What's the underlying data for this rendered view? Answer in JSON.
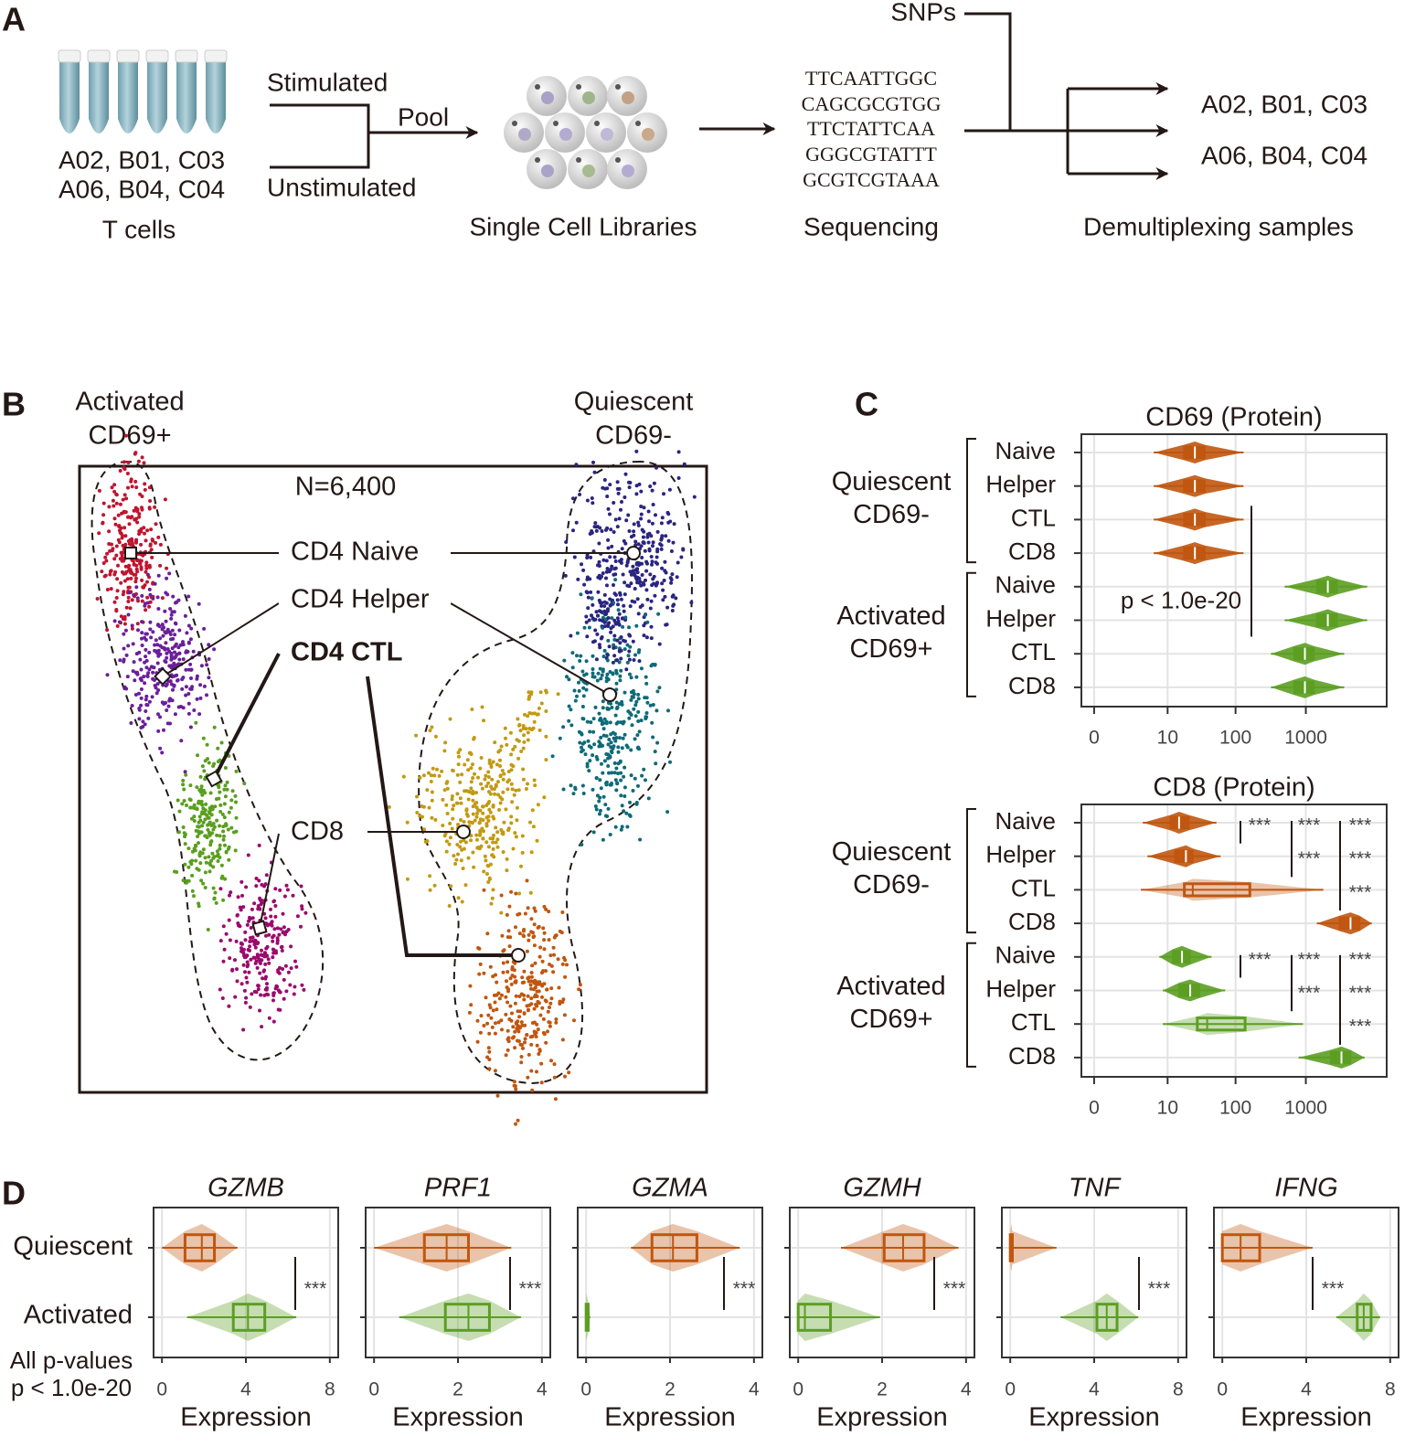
{
  "panel_a": {
    "label": "A",
    "tube_samples": [
      "A02, B01, C03",
      "A06, B04, C04"
    ],
    "tubes_caption": "T cells",
    "stimulated": "Stimulated",
    "unstimulated": "Unstimulated",
    "pool": "Pool",
    "libraries_caption": "Single Cell Libraries",
    "sequences": [
      "TTCAATTGGC",
      "CAGCGCGTGG",
      "TTCTATTCAA",
      "GGGCGTATTT",
      "GCGTCGTAAA"
    ],
    "sequencing_caption": "Sequencing",
    "snps": "SNPs",
    "demux_samples": [
      "A02, B01, C03",
      "A06, B04, C04"
    ],
    "demux_caption": "Demultiplexing samples"
  },
  "panel_b": {
    "label": "B",
    "left_group": [
      "Activated",
      "CD69+"
    ],
    "right_group": [
      "Quiescent",
      "CD69-"
    ],
    "n": "N=6,400",
    "cell_types": [
      "CD4 Naive",
      "CD4 Helper",
      "CD4 CTL",
      "CD8"
    ]
  },
  "panel_c": {
    "label": "C"
  },
  "panel_d": {
    "label": "D",
    "categories": [
      "Quiescent",
      "Activated"
    ],
    "note": [
      "All p-values",
      "p < 1.0e-20"
    ]
  },
  "chart_data": [
    {
      "type": "box",
      "title": "CD69 (Protein)",
      "xscale": "pseudo_log",
      "xlim": [
        -0.34,
        14000
      ],
      "xticks": [
        0,
        10,
        100,
        1000
      ],
      "grid": true,
      "annotation": "p < 1.0e-20",
      "groups": [
        {
          "label": [
            "Quiescent",
            "CD69-"
          ],
          "color": "#c0560f",
          "categories": [
            "Naive",
            "Helper",
            "CTL",
            "CD8"
          ],
          "boxes": [
            {
              "low": 6,
              "q1": 17.7,
              "median": 25.8,
              "q3": 36.2,
              "high": 130
            },
            {
              "low": 6,
              "q1": 17.7,
              "median": 25.8,
              "q3": 36.2,
              "high": 130
            },
            {
              "low": 6,
              "q1": 17.7,
              "median": 25.8,
              "q3": 36.2,
              "high": 130
            },
            {
              "low": 6,
              "q1": 17.7,
              "median": 25.8,
              "q3": 36.2,
              "high": 130
            }
          ]
        },
        {
          "label": [
            "Activated",
            "CD69+"
          ],
          "color": "#5c9e22",
          "categories": [
            "Naive",
            "Helper",
            "CTL",
            "CD8"
          ],
          "boxes": [
            {
              "low": 500,
              "q1": 1430,
              "median": 2050,
              "q3": 2770,
              "high": 7400
            },
            {
              "low": 500,
              "q1": 1430,
              "median": 2050,
              "q3": 2770,
              "high": 7400
            },
            {
              "low": 320,
              "q1": 680,
              "median": 970,
              "q3": 1300,
              "high": 3500
            },
            {
              "low": 320,
              "q1": 680,
              "median": 970,
              "q3": 1300,
              "high": 3500
            }
          ]
        }
      ]
    },
    {
      "type": "box",
      "title": "CD8 (Protein)",
      "xscale": "pseudo_log",
      "xlim": [
        -0.34,
        14000
      ],
      "xticks": [
        0,
        10,
        100,
        1000
      ],
      "grid": true,
      "groups": [
        {
          "label": [
            "Quiescent",
            "CD69-"
          ],
          "color": "#c0560f",
          "categories": [
            "Naive",
            "Helper",
            "CTL",
            "CD8"
          ],
          "boxes": [
            {
              "low": 3.9,
              "q1": 11,
              "median": 15,
              "q3": 21,
              "high": 53
            },
            {
              "low": 4.7,
              "q1": 13,
              "median": 19,
              "q3": 24,
              "high": 61
            },
            {
              "low": 3.6,
              "q1": 18,
              "median": 24,
              "q3": 160,
              "high": 1770
            },
            {
              "low": 1430,
              "q1": 3000,
              "median": 4300,
              "q3": 5800,
              "high": 8600
            }
          ],
          "significance": [
            "***",
            "***",
            "***",
            "***",
            "***",
            "***"
          ]
        },
        {
          "label": [
            "Activated",
            "CD69+"
          ],
          "color": "#5c9e22",
          "categories": [
            "Naive",
            "Helper",
            "CTL",
            "CD8"
          ],
          "boxes": [
            {
              "low": 7.4,
              "q1": 12,
              "median": 16.6,
              "q3": 22,
              "high": 45
            },
            {
              "low": 8.4,
              "q1": 15,
              "median": 22,
              "q3": 30,
              "high": 71
            },
            {
              "low": 8.4,
              "q1": 28,
              "median": 39,
              "q3": 137,
              "high": 910
            },
            {
              "low": 790,
              "q1": 2250,
              "median": 3200,
              "q3": 4300,
              "high": 6800
            }
          ],
          "significance": [
            "***",
            "***",
            "***",
            "***",
            "***",
            "***"
          ]
        }
      ]
    },
    {
      "type": "box",
      "title": "GZMB",
      "xlabel": "Expression",
      "xlim": [
        -0.4,
        8.4
      ],
      "xticks": [
        0,
        4,
        8
      ],
      "grid": true,
      "colors": [
        "#c0560f",
        "#5c9e22"
      ],
      "significance": "***",
      "boxes": [
        {
          "low": 0,
          "q1": 1.1,
          "median": 1.9,
          "q3": 2.5,
          "high": 3.6
        },
        {
          "low": 1.2,
          "q1": 3.4,
          "median": 4.1,
          "q3": 4.9,
          "high": 6.4
        }
      ]
    },
    {
      "type": "box",
      "title": "PRF1",
      "xlabel": "Expression",
      "xlim": [
        -0.2,
        4.2
      ],
      "xticks": [
        0,
        2,
        4
      ],
      "grid": true,
      "colors": [
        "#c0560f",
        "#5c9e22"
      ],
      "significance": "***",
      "boxes": [
        {
          "low": 0,
          "q1": 1.2,
          "median": 1.73,
          "q3": 2.25,
          "high": 3.27
        },
        {
          "low": 0.6,
          "q1": 1.7,
          "median": 2.25,
          "q3": 2.75,
          "high": 3.5
        }
      ]
    },
    {
      "type": "box",
      "title": "GZMA",
      "xlabel": "Expression",
      "xlim": [
        -0.2,
        4.2
      ],
      "xticks": [
        0,
        2,
        4
      ],
      "grid": true,
      "colors": [
        "#c0560f",
        "#5c9e22"
      ],
      "significance": "***",
      "boxes": [
        {
          "low": 1.07,
          "q1": 1.57,
          "median": 2.07,
          "q3": 2.64,
          "high": 3.66
        },
        {
          "low": 0,
          "q1": 0,
          "median": 0,
          "q3": 0.05,
          "high": 0.1
        }
      ]
    },
    {
      "type": "box",
      "title": "GZMH",
      "xlabel": "Expression",
      "xlim": [
        -0.2,
        4.2
      ],
      "xticks": [
        0,
        2,
        4
      ],
      "grid": true,
      "colors": [
        "#c0560f",
        "#5c9e22"
      ],
      "significance": "***",
      "boxes": [
        {
          "low": 1.02,
          "q1": 2.05,
          "median": 2.5,
          "q3": 3,
          "high": 3.82
        },
        {
          "low": 0,
          "q1": 0,
          "median": 0.16,
          "q3": 0.77,
          "high": 1.95
        }
      ]
    },
    {
      "type": "box",
      "title": "TNF",
      "xlabel": "Expression",
      "xlim": [
        -0.4,
        8.4
      ],
      "xticks": [
        0,
        4,
        8
      ],
      "grid": true,
      "colors": [
        "#c0560f",
        "#5c9e22"
      ],
      "significance": "***",
      "boxes": [
        {
          "low": 0,
          "q1": 0,
          "median": 0.05,
          "q3": 0.1,
          "high": 2.2
        },
        {
          "low": 2.4,
          "q1": 4.13,
          "median": 4.6,
          "q3": 5.09,
          "high": 6.1
        }
      ]
    },
    {
      "type": "box",
      "title": "IFNG",
      "xlabel": "Expression",
      "xlim": [
        -0.4,
        8.4
      ],
      "xticks": [
        0,
        4,
        8
      ],
      "grid": true,
      "colors": [
        "#c0560f",
        "#5c9e22"
      ],
      "significance": "***",
      "boxes": [
        {
          "low": 0,
          "q1": 0,
          "median": 0.87,
          "q3": 1.78,
          "high": 4.3
        },
        {
          "low": 5.43,
          "q1": 6.43,
          "median": 6.74,
          "q3": 7.09,
          "high": 7.52
        }
      ]
    }
  ]
}
